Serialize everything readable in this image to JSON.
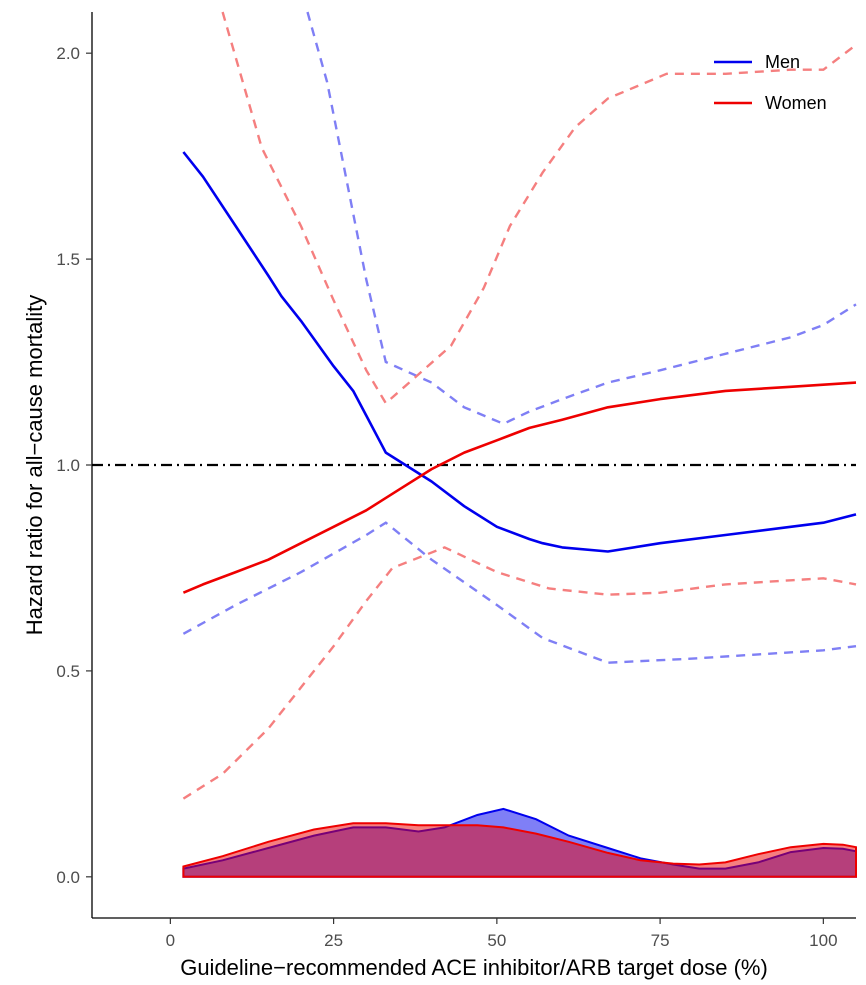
{
  "chart_data": {
    "type": "line",
    "xlabel": "Guideline−recommended ACE inhibitor/ARB target dose (%)",
    "ylabel": "Hazard ratio for all−cause mortality",
    "xlim": [
      -12,
      105
    ],
    "ylim": [
      -0.1,
      2.1
    ],
    "x_ticks": [
      0,
      25,
      50,
      75,
      100
    ],
    "x_tick_labels": [
      "0",
      "25",
      "50",
      "75",
      "100"
    ],
    "y_ticks": [
      0.0,
      0.5,
      1.0,
      1.5,
      2.0
    ],
    "y_tick_labels": [
      "0.0",
      "0.5",
      "1.0",
      "1.5",
      "2.0"
    ],
    "grid": false,
    "legend_position": "top-right",
    "reference_line": {
      "y": 1.0,
      "style": "dot-dash",
      "color": "#000000"
    },
    "series": [
      {
        "name": "Men",
        "color": "#0000ee",
        "estimate": {
          "x": [
            2,
            5,
            10,
            15,
            17,
            20,
            25,
            28,
            30,
            33,
            40,
            45,
            50,
            55,
            57,
            60,
            67,
            75,
            85,
            95,
            100,
            105
          ],
          "y": [
            1.76,
            1.7,
            1.58,
            1.46,
            1.41,
            1.35,
            1.24,
            1.18,
            1.12,
            1.03,
            0.96,
            0.9,
            0.85,
            0.82,
            0.81,
            0.8,
            0.79,
            0.81,
            0.83,
            0.85,
            0.86,
            0.88
          ]
        },
        "ci_lower": {
          "x": [
            2,
            10,
            20,
            30,
            33,
            40,
            50,
            57,
            67,
            80,
            90,
            100,
            105
          ],
          "y": [
            0.59,
            0.66,
            0.74,
            0.83,
            0.86,
            0.77,
            0.66,
            0.58,
            0.52,
            0.53,
            0.54,
            0.55,
            0.56
          ]
        },
        "ci_upper": {
          "x": [
            21,
            24,
            27,
            30,
            33,
            40,
            45,
            51,
            55,
            60,
            67,
            75,
            85,
            95,
            100,
            105
          ],
          "y": [
            2.1,
            1.93,
            1.69,
            1.45,
            1.25,
            1.2,
            1.14,
            1.1,
            1.13,
            1.16,
            1.2,
            1.23,
            1.27,
            1.31,
            1.34,
            1.39
          ]
        },
        "density": {
          "x": [
            2,
            8,
            15,
            22,
            28,
            33,
            38,
            42,
            47,
            51,
            56,
            61,
            67,
            72,
            77,
            81,
            85,
            90,
            95,
            100,
            103,
            105
          ],
          "y": [
            0.02,
            0.04,
            0.07,
            0.1,
            0.12,
            0.12,
            0.11,
            0.12,
            0.15,
            0.165,
            0.14,
            0.1,
            0.07,
            0.045,
            0.03,
            0.02,
            0.02,
            0.035,
            0.06,
            0.07,
            0.068,
            0.062
          ]
        }
      },
      {
        "name": "Women",
        "color": "#ee0000",
        "estimate": {
          "x": [
            2,
            5,
            10,
            15,
            20,
            25,
            30,
            35,
            40,
            45,
            50,
            55,
            60,
            67,
            75,
            85,
            95,
            100,
            105
          ],
          "y": [
            0.69,
            0.71,
            0.74,
            0.77,
            0.81,
            0.85,
            0.89,
            0.94,
            0.99,
            1.03,
            1.06,
            1.09,
            1.11,
            1.14,
            1.16,
            1.18,
            1.19,
            1.195,
            1.2
          ]
        },
        "ci_lower": {
          "x": [
            2,
            8,
            15,
            20,
            25,
            30,
            34,
            42,
            50,
            58,
            67,
            75,
            85,
            95,
            100,
            105
          ],
          "y": [
            0.19,
            0.25,
            0.36,
            0.46,
            0.56,
            0.67,
            0.75,
            0.8,
            0.74,
            0.7,
            0.685,
            0.69,
            0.71,
            0.72,
            0.725,
            0.71
          ]
        },
        "ci_upper": {
          "x": [
            8,
            14,
            20,
            25,
            30,
            33,
            38,
            43,
            48,
            52,
            57,
            62,
            67,
            76,
            85,
            95,
            100,
            105
          ],
          "y": [
            2.1,
            1.77,
            1.58,
            1.4,
            1.23,
            1.15,
            1.22,
            1.29,
            1.43,
            1.58,
            1.71,
            1.82,
            1.89,
            1.95,
            1.95,
            1.96,
            1.96,
            2.02
          ]
        },
        "density": {
          "x": [
            2,
            8,
            15,
            22,
            28,
            33,
            38,
            42,
            47,
            51,
            56,
            61,
            67,
            72,
            77,
            81,
            85,
            90,
            95,
            100,
            103,
            105
          ],
          "y": [
            0.025,
            0.05,
            0.085,
            0.115,
            0.13,
            0.13,
            0.125,
            0.125,
            0.125,
            0.12,
            0.105,
            0.085,
            0.058,
            0.04,
            0.032,
            0.03,
            0.035,
            0.055,
            0.072,
            0.08,
            0.078,
            0.072
          ]
        }
      }
    ]
  }
}
